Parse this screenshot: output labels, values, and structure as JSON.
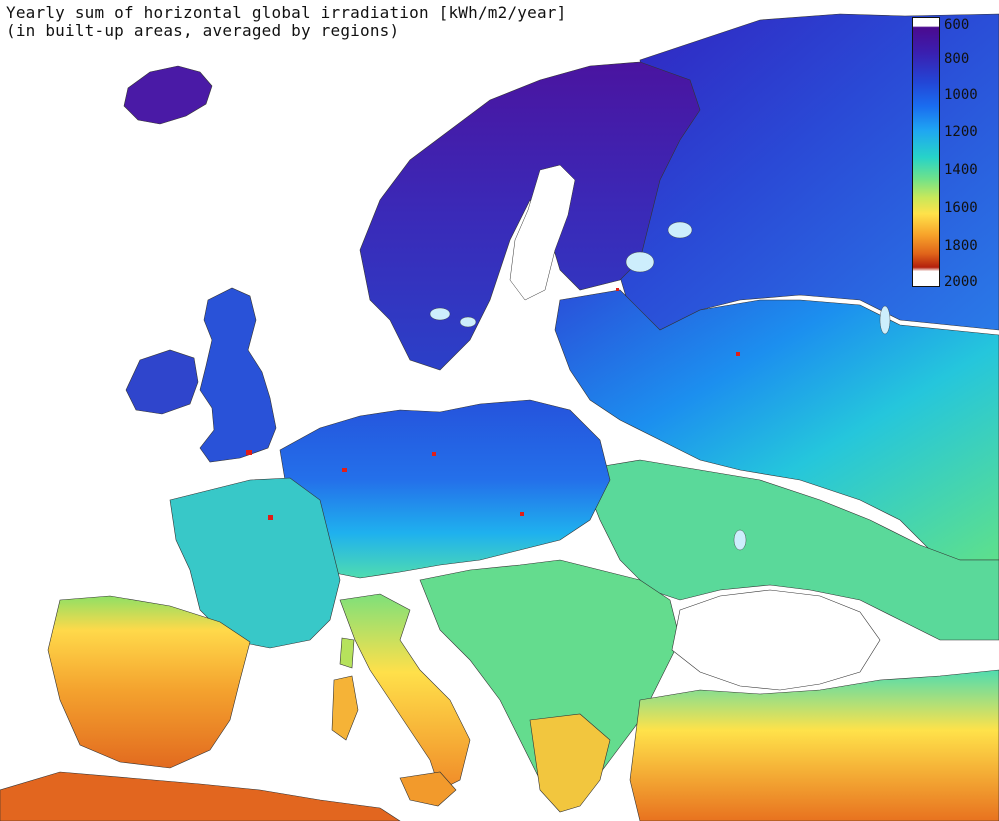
{
  "map": {
    "title": "Yearly sum of horizontal global irradiation [kWh/m2/year]",
    "subtitle": "(in built-up areas, averaged by regions)",
    "region": "Europe",
    "colors": {
      "sea": "#ffffff",
      "borders": "#555555",
      "north": "#3f1aa5",
      "northwest": "#2f3ec6",
      "central": "#2158e0",
      "central_south": "#1aa0ef",
      "east": "#22c1e6",
      "balkans": "#5fe08d",
      "iberia": "#f29a2c",
      "south": "#e5701f",
      "urban_hotspot": "#e01e18"
    }
  },
  "legend": {
    "ticks": [
      "600",
      "800",
      "1000",
      "1200",
      "1400",
      "1600",
      "1800",
      "2000"
    ],
    "min": 600,
    "max": 2000
  }
}
